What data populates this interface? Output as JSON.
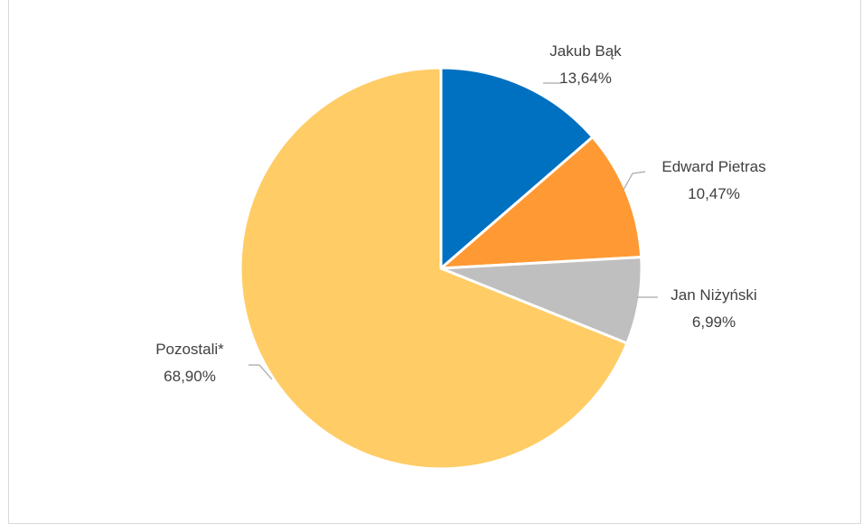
{
  "chart_data": {
    "type": "pie",
    "title": "",
    "slices": [
      {
        "label": "Jakub Bąk",
        "value": 13.64,
        "value_text": "13,64%",
        "color": "#0070C0"
      },
      {
        "label": "Edward Pietras",
        "value": 10.47,
        "value_text": "10,47%",
        "color": "#FF9933"
      },
      {
        "label": "Jan Niżyński",
        "value": 6.99,
        "value_text": "6,99%",
        "color": "#BFBFBF"
      },
      {
        "label": "Pozostali*",
        "value": 68.9,
        "value_text": "68,90%",
        "color": "#FFCC66"
      }
    ],
    "start_angle": "12 o'clock",
    "direction": "clockwise",
    "legend": "none",
    "data_labels": "outside with leader lines"
  }
}
